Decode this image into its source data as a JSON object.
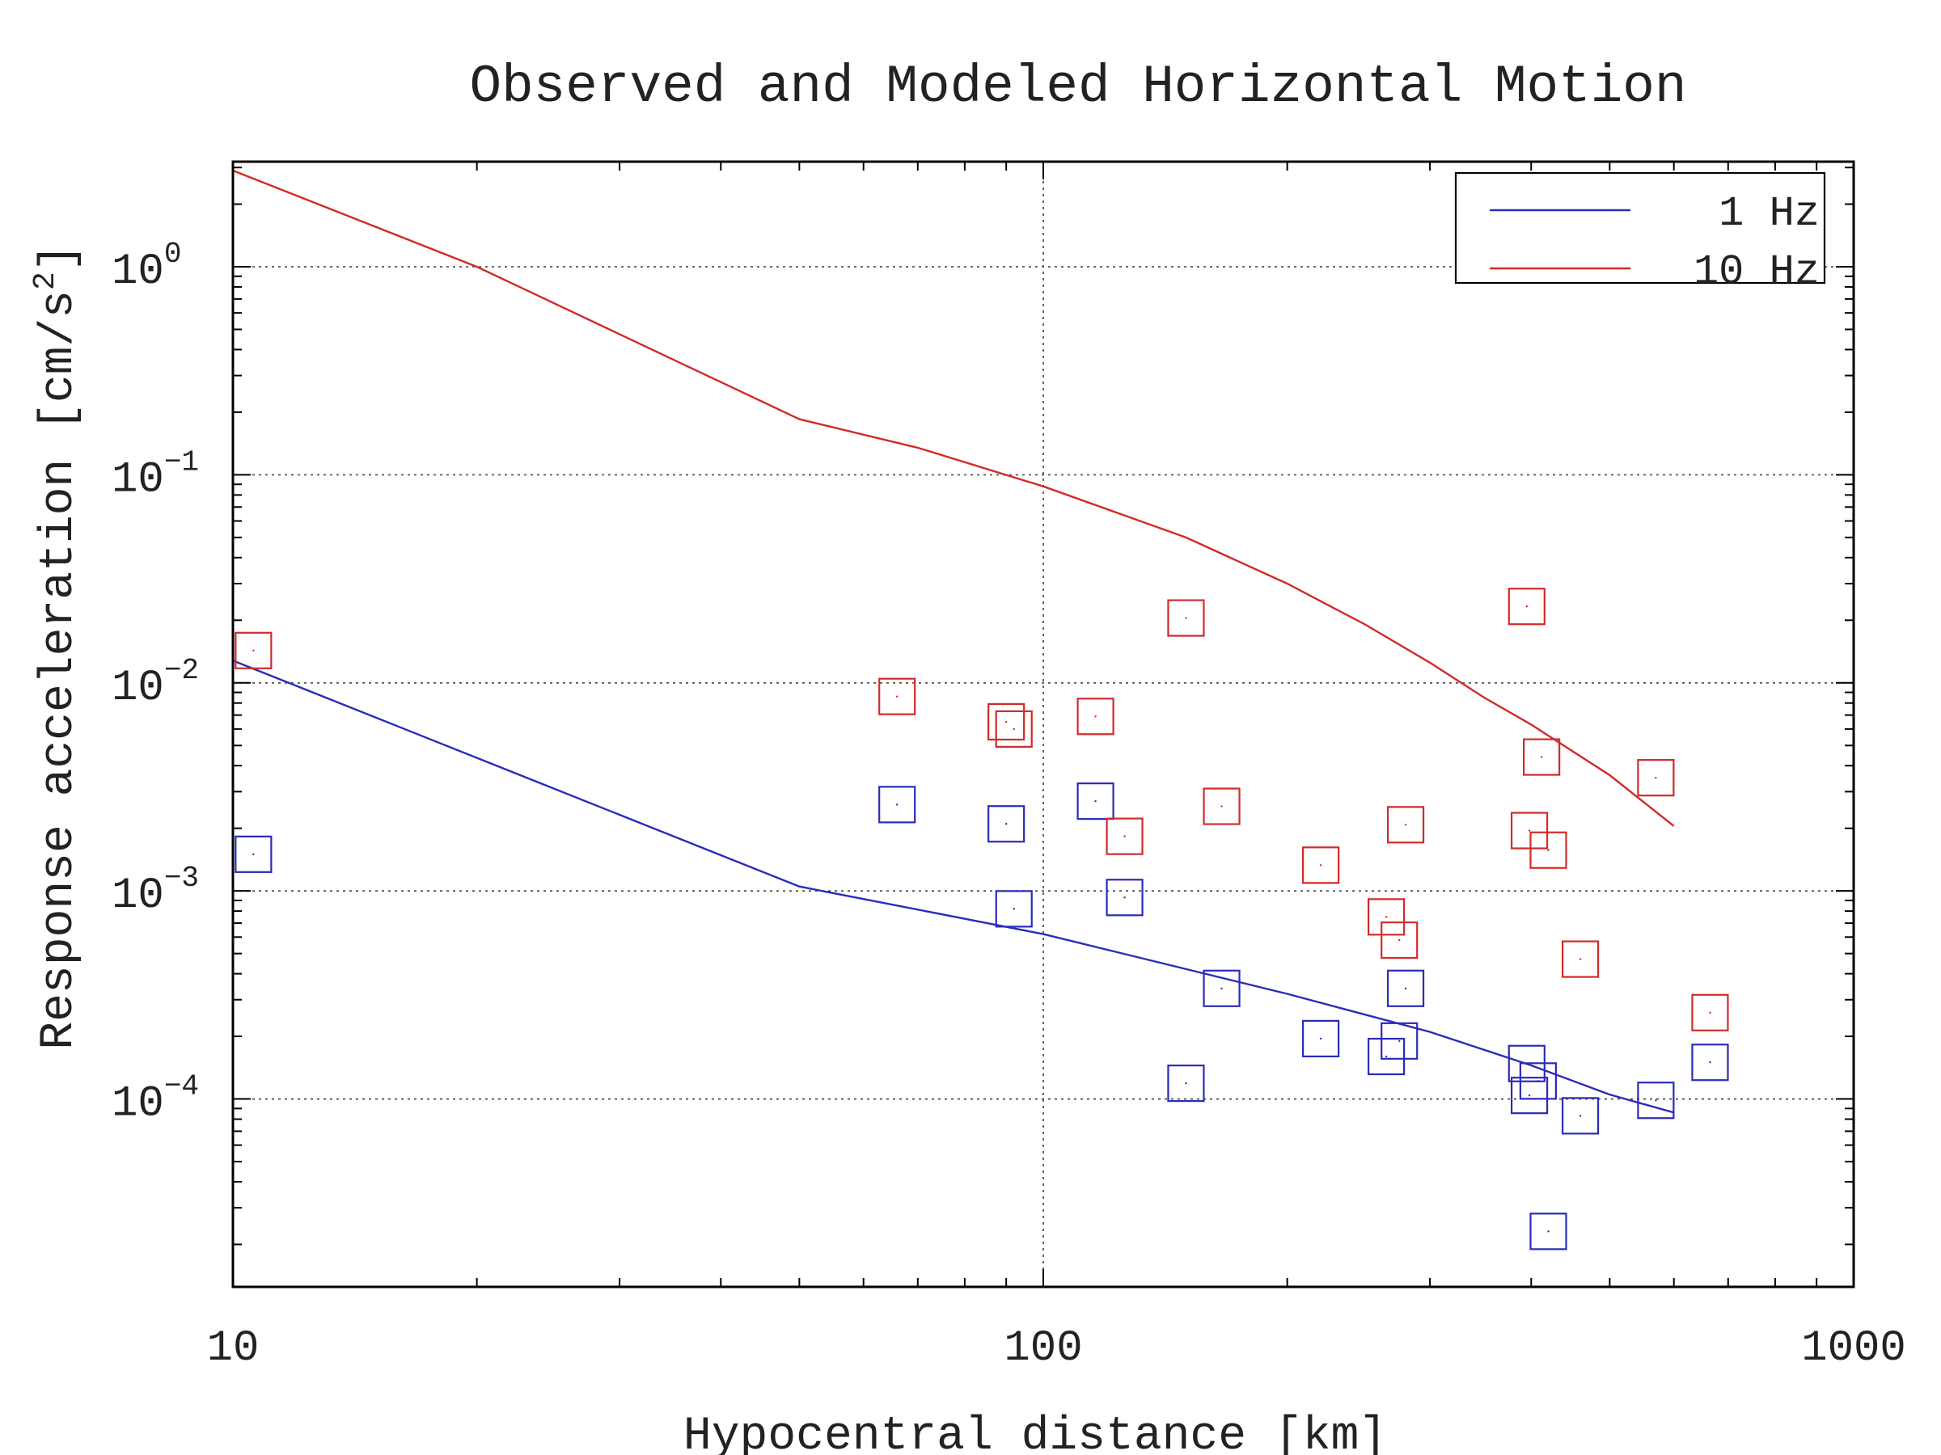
{
  "chart_data": {
    "type": "scatter",
    "title": "Observed and Modeled Horizontal Motion",
    "xlabel": "Hypocentral distance [km]",
    "ylabel": "Response acceleration [cm/s",
    "ylabel_sup": "2",
    "ylabel_end": "]",
    "xscale": "log",
    "yscale": "log",
    "xlim": [
      10,
      1000
    ],
    "ylim": [
      1.25e-05,
      3.2
    ],
    "grid": true,
    "legend_position": "top-right",
    "x_ticks": [
      {
        "value": 10,
        "label": "10"
      },
      {
        "value": 100,
        "label": "100"
      },
      {
        "value": 1000,
        "label": "1000"
      }
    ],
    "y_ticks": [
      {
        "value": 1,
        "base": "10",
        "exp": "0"
      },
      {
        "value": 0.1,
        "base": "10",
        "exp": "−1"
      },
      {
        "value": 0.01,
        "base": "10",
        "exp": "−2"
      },
      {
        "value": 0.001,
        "base": "10",
        "exp": "−3"
      },
      {
        "value": 0.0001,
        "base": "10",
        "exp": "−4"
      }
    ],
    "series": [
      {
        "name": "1 Hz",
        "color": "#2b2bb8",
        "model": {
          "x": [
            10,
            50,
            100,
            200,
            300,
            400,
            500,
            600
          ],
          "y": [
            0.0128,
            0.00105,
            0.00062,
            0.00032,
            0.00021,
            0.000145,
            0.000105,
            8.6e-05
          ]
        },
        "observed": {
          "x": [
            10.6,
            66,
            90,
            92,
            116,
            126,
            150,
            166,
            220,
            265,
            275,
            280,
            395,
            398,
            408,
            420,
            460,
            570,
            665
          ],
          "y": [
            0.0015,
            0.0026,
            0.0021,
            0.00082,
            0.0027,
            0.00093,
            0.000119,
            0.00034,
            0.000195,
            0.00016,
            0.00019,
            0.00034,
            0.000148,
            0.000104,
            0.000122,
            2.31e-05,
            8.3e-05,
            9.85e-05,
            0.00015
          ]
        }
      },
      {
        "name": "10 Hz",
        "color": "#d22a2a",
        "model": {
          "x": [
            10,
            20,
            50,
            70,
            100,
            150,
            200,
            250,
            300,
            350,
            400,
            500,
            600
          ],
          "y": [
            2.9,
            1.0,
            0.185,
            0.135,
            0.088,
            0.05,
            0.03,
            0.019,
            0.0125,
            0.0085,
            0.0063,
            0.0036,
            0.00205
          ]
        },
        "observed": {
          "x": [
            10.6,
            66,
            90,
            92,
            116,
            126,
            150,
            166,
            220,
            265,
            275,
            280,
            395,
            398,
            412,
            420,
            460,
            570,
            665
          ],
          "y": [
            0.0143,
            0.0086,
            0.0065,
            0.006,
            0.0069,
            0.00183,
            0.0205,
            0.00255,
            0.00133,
            0.00075,
            0.00058,
            0.00208,
            0.0233,
            0.00195,
            0.0044,
            0.00157,
            0.00047,
            0.0035,
            0.00026
          ]
        }
      }
    ]
  }
}
